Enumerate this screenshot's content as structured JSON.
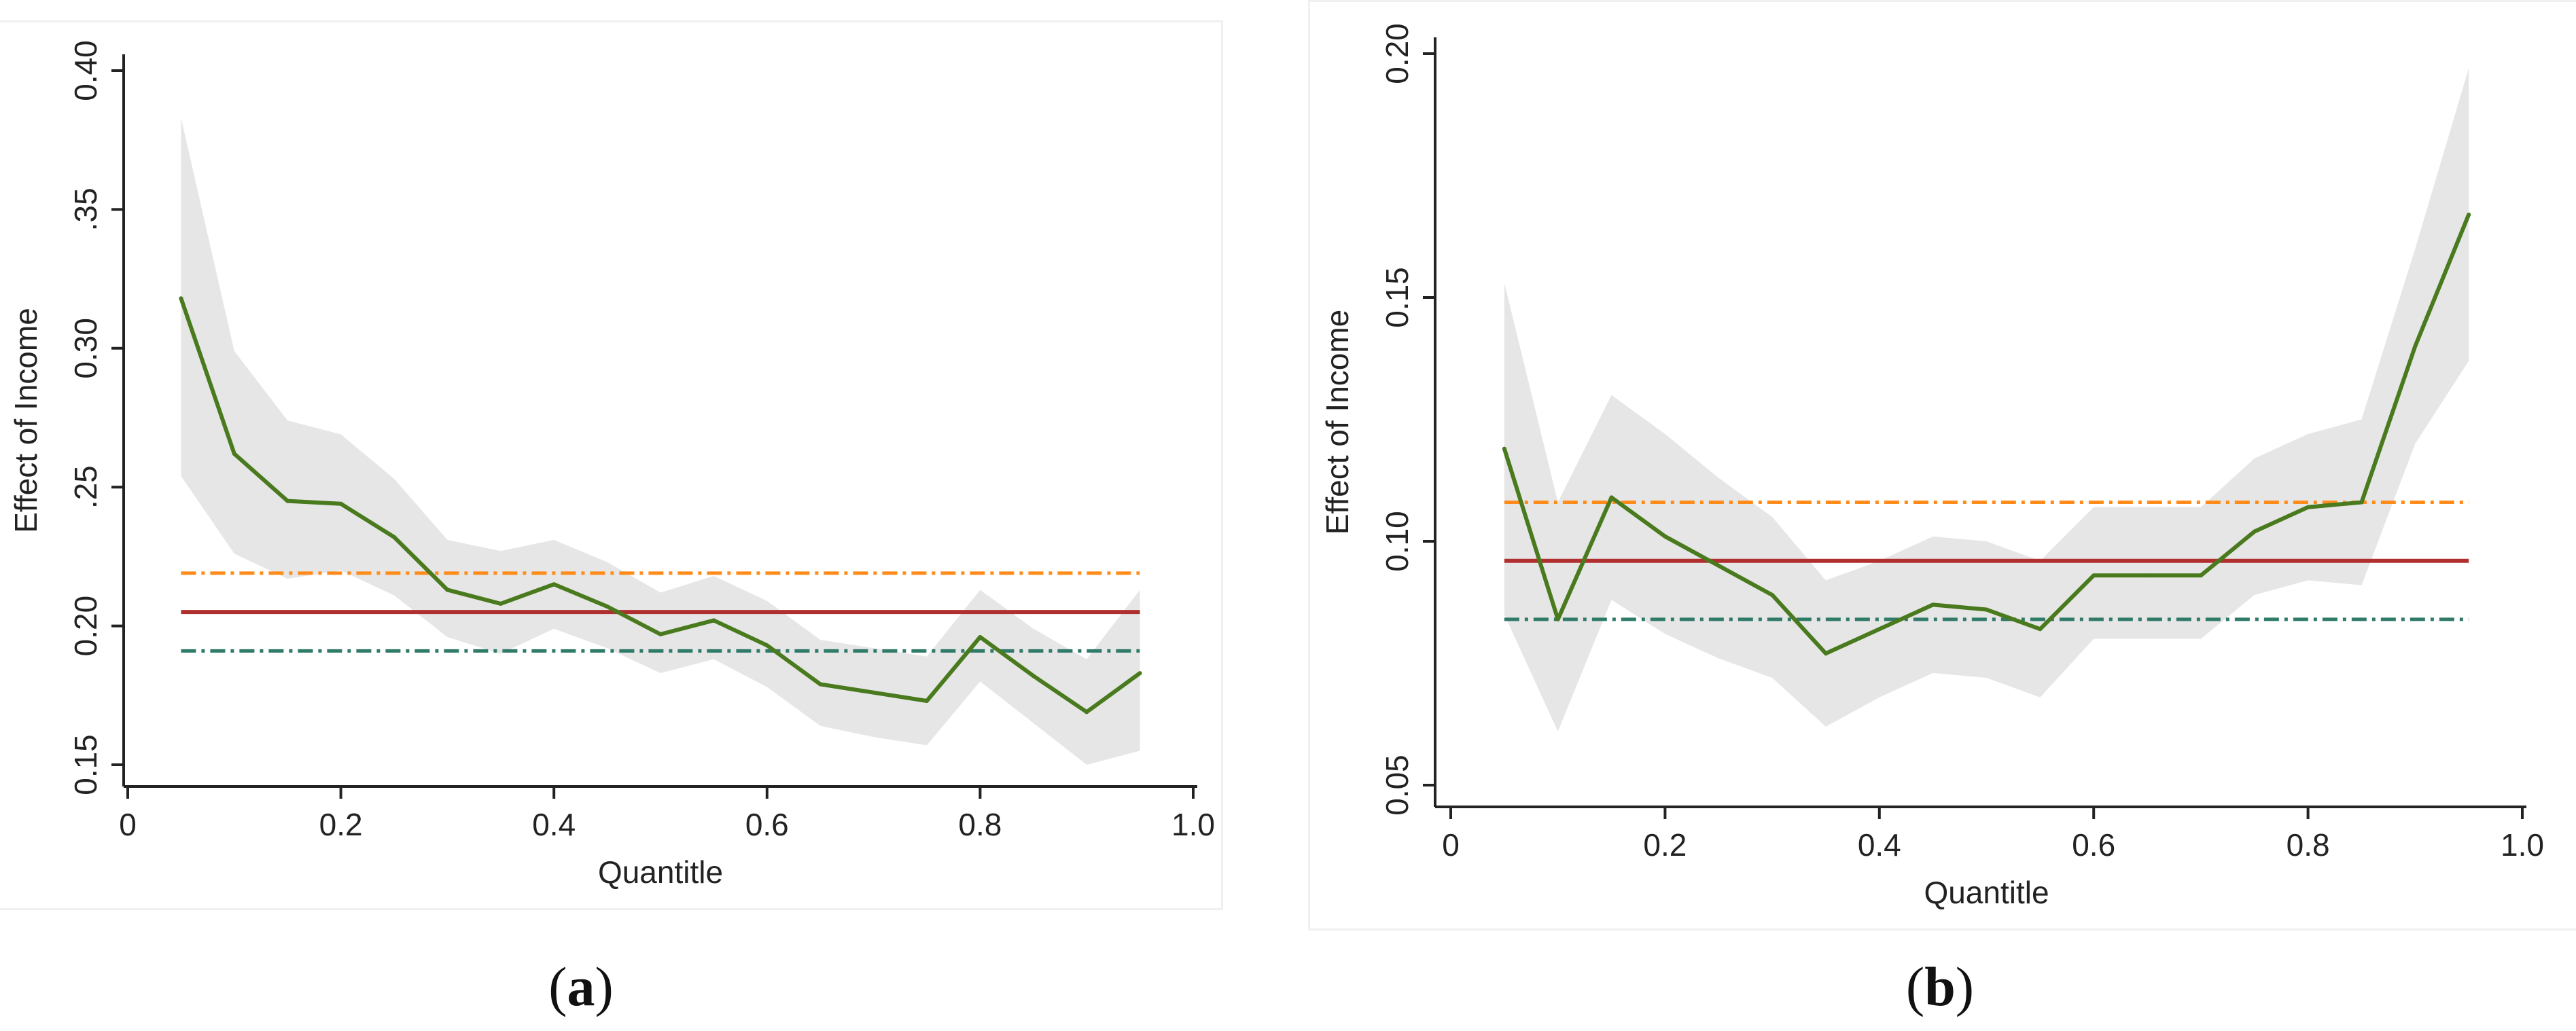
{
  "figure": {
    "panel_captions": [
      {
        "open": "(",
        "letter": "a",
        "close": ")"
      },
      {
        "open": "(",
        "letter": "b",
        "close": ")"
      }
    ]
  },
  "colors": {
    "estimate_line": "#4a7a1e",
    "confidence_band": "#e6e6e6",
    "ols_line": "#b03030",
    "upper_line": "#ff8c1a",
    "lower_line": "#2f7a68",
    "axis": "#222222"
  },
  "chart_data": [
    {
      "type": "line",
      "panel": "a",
      "xlabel": "Quantitle",
      "ylabel": "Effect of Income",
      "xlim": [
        0,
        1.0
      ],
      "ylim": [
        0.15,
        0.4
      ],
      "xticks": [
        {
          "value": 0,
          "label": "0"
        },
        {
          "value": 0.2,
          "label": "0.2"
        },
        {
          "value": 0.4,
          "label": "0.4"
        },
        {
          "value": 0.6,
          "label": "0.6"
        },
        {
          "value": 0.8,
          "label": "0.8"
        },
        {
          "value": 1.0,
          "label": "1.0"
        }
      ],
      "yticks": [
        {
          "value": 0.15,
          "label": "0.15"
        },
        {
          "value": 0.2,
          "label": "0.20"
        },
        {
          "value": 0.25,
          "label": ".25"
        },
        {
          "value": 0.3,
          "label": "0.30"
        },
        {
          "value": 0.35,
          "label": ".35"
        },
        {
          "value": 0.4,
          "label": "0.40"
        }
      ],
      "x": [
        0.05,
        0.1,
        0.15,
        0.2,
        0.25,
        0.3,
        0.35,
        0.4,
        0.45,
        0.5,
        0.55,
        0.6,
        0.65,
        0.7,
        0.75,
        0.8,
        0.85,
        0.9,
        0.95
      ],
      "estimate": [
        0.318,
        0.262,
        0.245,
        0.244,
        0.232,
        0.213,
        0.208,
        0.215,
        0.207,
        0.197,
        0.202,
        0.193,
        0.179,
        0.176,
        0.173,
        0.196,
        0.182,
        0.169,
        0.183
      ],
      "ci_upper": [
        0.383,
        0.299,
        0.274,
        0.269,
        0.253,
        0.231,
        0.227,
        0.231,
        0.223,
        0.212,
        0.218,
        0.209,
        0.195,
        0.192,
        0.189,
        0.213,
        0.199,
        0.188,
        0.213
      ],
      "ci_lower": [
        0.254,
        0.226,
        0.217,
        0.22,
        0.211,
        0.196,
        0.19,
        0.199,
        0.192,
        0.183,
        0.188,
        0.178,
        0.164,
        0.16,
        0.157,
        0.18,
        0.165,
        0.15,
        0.155
      ],
      "ols": 0.205,
      "ols_upper": 0.219,
      "ols_lower": 0.191,
      "hline_range": [
        0.05,
        0.95
      ]
    },
    {
      "type": "line",
      "panel": "b",
      "xlabel": "Quantitle",
      "ylabel": "Effect of Income",
      "xlim": [
        0,
        1.0
      ],
      "ylim": [
        0.05,
        0.2
      ],
      "xticks": [
        {
          "value": 0,
          "label": "0"
        },
        {
          "value": 0.2,
          "label": "0.2"
        },
        {
          "value": 0.4,
          "label": "0.4"
        },
        {
          "value": 0.6,
          "label": "0.6"
        },
        {
          "value": 0.8,
          "label": "0.8"
        },
        {
          "value": 1.0,
          "label": "1.0"
        }
      ],
      "yticks": [
        {
          "value": 0.05,
          "label": "0.05"
        },
        {
          "value": 0.1,
          "label": "0.10"
        },
        {
          "value": 0.15,
          "label": "0.15"
        },
        {
          "value": 0.2,
          "label": "0.20"
        }
      ],
      "x": [
        0.05,
        0.1,
        0.15,
        0.2,
        0.25,
        0.3,
        0.35,
        0.4,
        0.45,
        0.5,
        0.55,
        0.6,
        0.65,
        0.7,
        0.75,
        0.8,
        0.85,
        0.9,
        0.95
      ],
      "estimate": [
        0.119,
        0.084,
        0.109,
        0.101,
        0.095,
        0.089,
        0.077,
        0.082,
        0.087,
        0.086,
        0.082,
        0.093,
        0.093,
        0.093,
        0.102,
        0.107,
        0.108,
        0.14,
        0.167
      ],
      "ci_upper": [
        0.153,
        0.108,
        0.13,
        0.122,
        0.113,
        0.105,
        0.092,
        0.096,
        0.101,
        0.1,
        0.096,
        0.107,
        0.107,
        0.107,
        0.117,
        0.122,
        0.125,
        0.16,
        0.197
      ],
      "ci_lower": [
        0.085,
        0.061,
        0.088,
        0.081,
        0.076,
        0.072,
        0.062,
        0.068,
        0.073,
        0.072,
        0.068,
        0.08,
        0.08,
        0.08,
        0.089,
        0.092,
        0.091,
        0.12,
        0.137
      ],
      "ols": 0.096,
      "ols_upper": 0.108,
      "ols_lower": 0.084,
      "hline_range": [
        0.05,
        0.95
      ]
    }
  ]
}
